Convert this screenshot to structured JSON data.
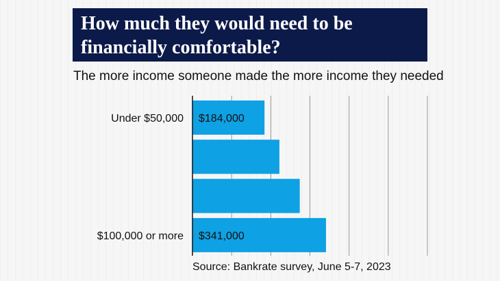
{
  "title": "How much they would need to be financially comfortable?",
  "subtitle": "The more income someone made the more income they needed",
  "source": "Source: Bankrate survey, June 5-7, 2023",
  "colors": {
    "header_bg": "#0c1a4a",
    "bar": "#0ea1e3",
    "grid": "#999999",
    "text": "#111111"
  },
  "chart_data": {
    "type": "bar",
    "orientation": "horizontal",
    "categories": [
      "Under $50,000",
      "",
      "",
      "$100,000 or more"
    ],
    "values": [
      184000,
      222000,
      274000,
      341000
    ],
    "data_labels": [
      "$184,000",
      "",
      "",
      "$341,000"
    ],
    "xlim": [
      0,
      600000
    ],
    "gridlines": [
      0,
      100000,
      200000,
      300000,
      400000,
      500000,
      600000
    ],
    "grid": true,
    "legend": "none"
  }
}
